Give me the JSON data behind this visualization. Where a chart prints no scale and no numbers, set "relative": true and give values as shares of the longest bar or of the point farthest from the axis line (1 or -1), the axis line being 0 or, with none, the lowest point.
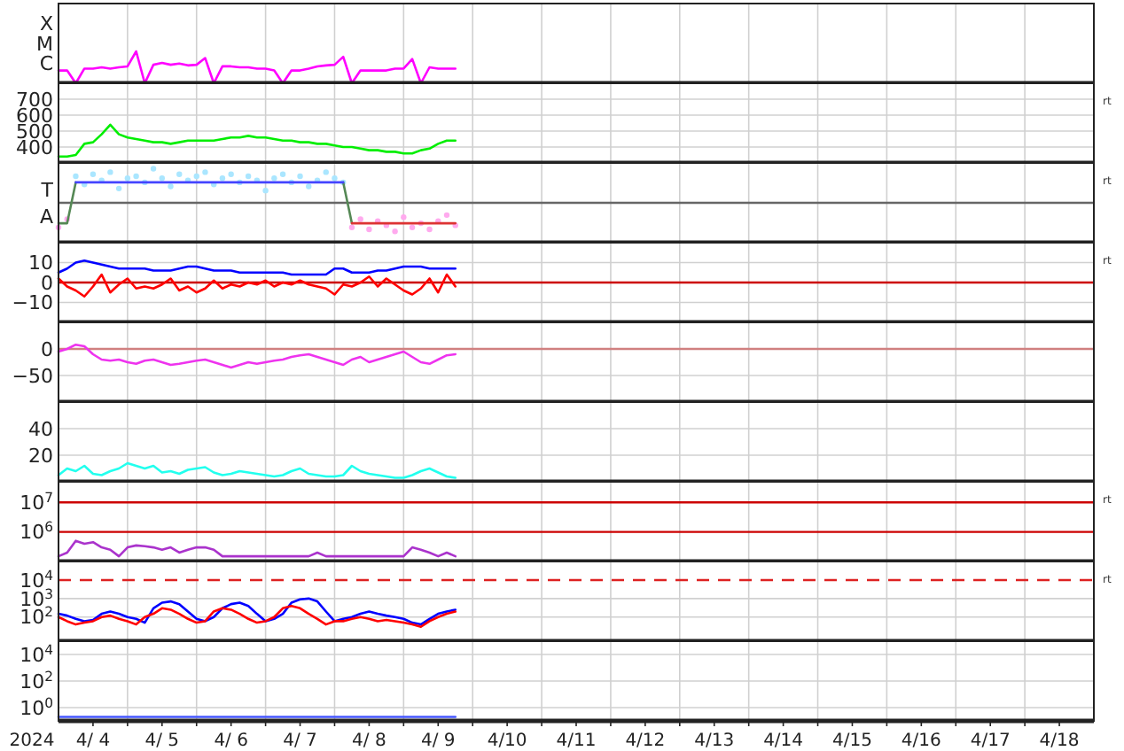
{
  "chart_data": [
    {
      "type": "line",
      "relative": true,
      "ylabel": "X M C",
      "grid": true,
      "tick_labels": "y",
      "xlim": [
        "2024-04-04T00:00",
        "2024-04-19T00:00"
      ],
      "x": [
        "2024-04-04T00:00",
        "2024-04-04T03:00",
        "2024-04-04T06:00",
        "2024-04-04T09:00",
        "2024-04-04T12:00",
        "2024-04-04T15:00",
        "2024-04-04T18:00",
        "2024-04-04T21:00",
        "2024-04-05T00:00",
        "2024-04-05T03:00",
        "2024-04-05T06:00",
        "2024-04-05T09:00",
        "2024-04-05T12:00",
        "2024-04-05T15:00",
        "2024-04-05T18:00",
        "2024-04-05T21:00",
        "2024-04-06T00:00",
        "2024-04-06T03:00",
        "2024-04-06T06:00",
        "2024-04-06T09:00",
        "2024-04-06T12:00",
        "2024-04-06T15:00",
        "2024-04-06T18:00",
        "2024-04-06T21:00",
        "2024-04-07T00:00",
        "2024-04-07T03:00",
        "2024-04-07T06:00",
        "2024-04-07T09:00",
        "2024-04-07T12:00",
        "2024-04-07T15:00",
        "2024-04-07T18:00",
        "2024-04-07T21:00",
        "2024-04-08T00:00",
        "2024-04-08T03:00",
        "2024-04-08T06:00",
        "2024-04-08T09:00",
        "2024-04-08T12:00",
        "2024-04-08T15:00",
        "2024-04-08T18:00",
        "2024-04-08T21:00",
        "2024-04-09T00:00",
        "2024-04-09T03:00",
        "2024-04-09T06:00",
        "2024-04-09T09:00",
        "2024-04-09T12:00",
        "2024-04-09T15:00",
        "2024-04-09T18:00"
      ],
      "series": [
        {
          "color": "#ff00ff",
          "values": [
            0.4,
            0.4,
            0,
            0.46,
            0.46,
            0.5,
            0.46,
            0.5,
            0.53,
            1,
            0,
            0.58,
            0.64,
            0.58,
            0.62,
            0.56,
            0.58,
            0.79,
            0,
            0.53,
            0.53,
            0.5,
            0.5,
            0.46,
            0.46,
            0.4,
            0,
            0.4,
            0.4,
            0.46,
            0.53,
            0.56,
            0.58,
            0.83,
            0,
            0.4,
            0.4,
            0.4,
            0.4,
            0.46,
            0.46,
            0.76,
            0,
            0.5,
            0.46,
            0.46,
            0.46
          ]
        }
      ]
    },
    {
      "type": "line",
      "ylim": [
        300,
        800
      ],
      "yticks": [
        400,
        500,
        600,
        700
      ],
      "grid": true,
      "tick_labels": "y",
      "annotations": [
        "rt"
      ],
      "xlim": [
        "2024-04-04T00:00",
        "2024-04-19T00:00"
      ],
      "x": [
        "2024-04-04T00:00",
        "2024-04-04T03:00",
        "2024-04-04T06:00",
        "2024-04-04T09:00",
        "2024-04-04T12:00",
        "2024-04-04T15:00",
        "2024-04-04T18:00",
        "2024-04-04T21:00",
        "2024-04-05T00:00",
        "2024-04-05T03:00",
        "2024-04-05T06:00",
        "2024-04-05T09:00",
        "2024-04-05T12:00",
        "2024-04-05T15:00",
        "2024-04-05T18:00",
        "2024-04-05T21:00",
        "2024-04-06T00:00",
        "2024-04-06T03:00",
        "2024-04-06T06:00",
        "2024-04-06T09:00",
        "2024-04-06T12:00",
        "2024-04-06T15:00",
        "2024-04-06T18:00",
        "2024-04-06T21:00",
        "2024-04-07T00:00",
        "2024-04-07T03:00",
        "2024-04-07T06:00",
        "2024-04-07T09:00",
        "2024-04-07T12:00",
        "2024-04-07T15:00",
        "2024-04-07T18:00",
        "2024-04-07T21:00",
        "2024-04-08T00:00",
        "2024-04-08T03:00",
        "2024-04-08T06:00",
        "2024-04-08T09:00",
        "2024-04-08T12:00",
        "2024-04-08T15:00",
        "2024-04-08T18:00",
        "2024-04-08T21:00",
        "2024-04-09T00:00",
        "2024-04-09T03:00",
        "2024-04-09T06:00",
        "2024-04-09T09:00",
        "2024-04-09T12:00",
        "2024-04-09T15:00",
        "2024-04-09T18:00"
      ],
      "series": [
        {
          "color": "#00ee00",
          "values": [
            340,
            340,
            350,
            420,
            430,
            480,
            540,
            480,
            460,
            450,
            440,
            430,
            430,
            420,
            430,
            440,
            440,
            440,
            440,
            450,
            460,
            460,
            470,
            460,
            460,
            450,
            440,
            440,
            430,
            430,
            420,
            420,
            410,
            400,
            400,
            390,
            380,
            380,
            370,
            370,
            360,
            360,
            380,
            390,
            420,
            440,
            440
          ]
        }
      ]
    },
    {
      "type": "line",
      "relative": true,
      "ylabel": "T A",
      "grid": true,
      "tick_labels": "y",
      "annotations": [
        "rt"
      ],
      "ref_lines": [
        {
          "axis": "y",
          "value": 0,
          "color": "#666666"
        }
      ],
      "xlim": [
        "2024-04-04T00:00",
        "2024-04-19T00:00"
      ],
      "x": [
        "2024-04-04T00:00",
        "2024-04-04T03:00",
        "2024-04-04T06:00",
        "2024-04-04T09:00",
        "2024-04-04T12:00",
        "2024-04-04T15:00",
        "2024-04-04T18:00",
        "2024-04-04T21:00",
        "2024-04-05T00:00",
        "2024-04-05T03:00",
        "2024-04-05T06:00",
        "2024-04-05T09:00",
        "2024-04-05T12:00",
        "2024-04-05T15:00",
        "2024-04-05T18:00",
        "2024-04-05T21:00",
        "2024-04-06T00:00",
        "2024-04-06T03:00",
        "2024-04-06T06:00",
        "2024-04-06T09:00",
        "2024-04-06T12:00",
        "2024-04-06T15:00",
        "2024-04-06T18:00",
        "2024-04-06T21:00",
        "2024-04-07T00:00",
        "2024-04-07T03:00",
        "2024-04-07T06:00",
        "2024-04-07T09:00",
        "2024-04-07T12:00",
        "2024-04-07T15:00",
        "2024-04-07T18:00",
        "2024-04-07T21:00",
        "2024-04-08T00:00",
        "2024-04-08T03:00",
        "2024-04-08T06:00",
        "2024-04-08T09:00",
        "2024-04-08T12:00",
        "2024-04-08T15:00",
        "2024-04-08T18:00",
        "2024-04-08T21:00",
        "2024-04-09T00:00",
        "2024-04-09T03:00",
        "2024-04-09T06:00",
        "2024-04-09T09:00",
        "2024-04-09T12:00",
        "2024-04-09T15:00",
        "2024-04-09T18:00"
      ],
      "series": [
        {
          "type": "scatter",
          "color": "#aae6ff",
          "values": [
            null,
            null,
            0.78,
            0.54,
            0.84,
            0.66,
            0.9,
            0.42,
            0.72,
            0.78,
            0.6,
            1,
            0.72,
            0.48,
            0.84,
            0.66,
            0.78,
            0.9,
            0.54,
            0.72,
            0.84,
            0.6,
            0.78,
            0.66,
            0.36,
            0.72,
            0.84,
            0.6,
            0.78,
            0.48,
            0.66,
            0.9,
            0.72,
            0.6,
            null,
            null,
            null,
            null,
            null,
            null,
            null,
            null,
            null,
            null,
            null,
            null,
            null
          ]
        },
        {
          "type": "scatter",
          "color": "#ffaaee",
          "values": [
            -0.72,
            -0.48,
            null,
            null,
            null,
            null,
            null,
            null,
            null,
            null,
            null,
            null,
            null,
            null,
            null,
            null,
            null,
            null,
            null,
            null,
            null,
            null,
            null,
            null,
            null,
            null,
            null,
            null,
            null,
            null,
            null,
            null,
            null,
            null,
            -0.72,
            -0.48,
            -0.78,
            -0.54,
            -0.66,
            -0.84,
            -0.42,
            -0.72,
            -0.6,
            -0.78,
            -0.54,
            -0.36,
            -0.66
          ]
        },
        {
          "color": "#558855",
          "values": [
            -0.6,
            -0.6,
            0.6,
            null,
            null,
            null,
            null,
            null,
            null,
            null,
            null,
            null,
            null,
            null,
            null,
            null,
            null,
            null,
            null,
            null,
            null,
            null,
            null,
            null,
            null,
            null,
            null,
            null,
            null,
            null,
            null,
            null,
            null,
            0.6,
            -0.6,
            null,
            null,
            null,
            null,
            null,
            null,
            null,
            null,
            null,
            null,
            null,
            null
          ]
        },
        {
          "color": "#4444ff",
          "values": [
            null,
            null,
            0.6,
            0.6,
            0.6,
            0.6,
            0.6,
            0.6,
            0.6,
            0.6,
            0.6,
            0.6,
            0.6,
            0.6,
            0.6,
            0.6,
            0.6,
            0.6,
            0.6,
            0.6,
            0.6,
            0.6,
            0.6,
            0.6,
            0.6,
            0.6,
            0.6,
            0.6,
            0.6,
            0.6,
            0.6,
            0.6,
            0.6,
            0.6,
            null,
            null,
            null,
            null,
            null,
            null,
            null,
            null,
            null,
            null,
            null,
            null,
            null
          ]
        },
        {
          "color": "#dd3333",
          "values": [
            null,
            null,
            null,
            null,
            null,
            null,
            null,
            null,
            null,
            null,
            null,
            null,
            null,
            null,
            null,
            null,
            null,
            null,
            null,
            null,
            null,
            null,
            null,
            null,
            null,
            null,
            null,
            null,
            null,
            null,
            null,
            null,
            null,
            null,
            -0.6,
            -0.6,
            -0.6,
            -0.6,
            -0.6,
            -0.6,
            -0.6,
            -0.6,
            -0.6,
            -0.6,
            -0.6,
            -0.6,
            -0.6
          ]
        }
      ]
    },
    {
      "type": "line",
      "ylim": [
        -20,
        20
      ],
      "yticks": [
        {
          "value": 10,
          "label": "10"
        },
        {
          "value": 0,
          "label": "0"
        },
        {
          "value": -10,
          "label": "−10"
        }
      ],
      "grid": true,
      "tick_labels": "y",
      "annotations": [
        "rt"
      ],
      "ref_lines": [
        {
          "axis": "y",
          "value": 0,
          "color": "#cc0000"
        }
      ],
      "xlim": [
        "2024-04-04T00:00",
        "2024-04-19T00:00"
      ],
      "x": [
        "2024-04-04T00:00",
        "2024-04-04T03:00",
        "2024-04-04T06:00",
        "2024-04-04T09:00",
        "2024-04-04T12:00",
        "2024-04-04T15:00",
        "2024-04-04T18:00",
        "2024-04-04T21:00",
        "2024-04-05T00:00",
        "2024-04-05T03:00",
        "2024-04-05T06:00",
        "2024-04-05T09:00",
        "2024-04-05T12:00",
        "2024-04-05T15:00",
        "2024-04-05T18:00",
        "2024-04-05T21:00",
        "2024-04-06T00:00",
        "2024-04-06T03:00",
        "2024-04-06T06:00",
        "2024-04-06T09:00",
        "2024-04-06T12:00",
        "2024-04-06T15:00",
        "2024-04-06T18:00",
        "2024-04-06T21:00",
        "2024-04-07T00:00",
        "2024-04-07T03:00",
        "2024-04-07T06:00",
        "2024-04-07T09:00",
        "2024-04-07T12:00",
        "2024-04-07T15:00",
        "2024-04-07T18:00",
        "2024-04-07T21:00",
        "2024-04-08T00:00",
        "2024-04-08T03:00",
        "2024-04-08T06:00",
        "2024-04-08T09:00",
        "2024-04-08T12:00",
        "2024-04-08T15:00",
        "2024-04-08T18:00",
        "2024-04-08T21:00",
        "2024-04-09T00:00",
        "2024-04-09T03:00",
        "2024-04-09T06:00",
        "2024-04-09T09:00",
        "2024-04-09T12:00",
        "2024-04-09T15:00",
        "2024-04-09T18:00"
      ],
      "series": [
        {
          "color": "#0000ff",
          "values": [
            5,
            7,
            10,
            11,
            10,
            9,
            8,
            7,
            7,
            7,
            7,
            6,
            6,
            6,
            7,
            8,
            8,
            7,
            6,
            6,
            6,
            5,
            5,
            5,
            5,
            5,
            5,
            4,
            4,
            4,
            4,
            4,
            7,
            7,
            5,
            5,
            5,
            6,
            6,
            7,
            8,
            8,
            8,
            7,
            7,
            7,
            7
          ]
        },
        {
          "color": "#ff0000",
          "values": [
            2,
            -2,
            -4,
            -7,
            -2,
            4,
            -5,
            -1,
            2,
            -3,
            -2,
            -3,
            -1,
            2,
            -4,
            -2,
            -5,
            -3,
            1,
            -3,
            -1,
            -2,
            0,
            -1,
            1,
            -2,
            0,
            -1,
            1,
            -1,
            -2,
            -3,
            -6,
            -1,
            -2,
            0,
            3,
            -2,
            2,
            -1,
            -4,
            -6,
            -3,
            2,
            -5,
            4,
            -2
          ]
        }
      ]
    },
    {
      "type": "line",
      "ylim": [
        -100,
        50
      ],
      "yticks": [
        {
          "value": 0,
          "label": "0"
        },
        {
          "value": -50,
          "label": "−50"
        }
      ],
      "grid": true,
      "tick_labels": "y",
      "ref_lines": [
        {
          "axis": "y",
          "value": 0,
          "color": "#d08080"
        }
      ],
      "xlim": [
        "2024-04-04T00:00",
        "2024-04-19T00:00"
      ],
      "x": [
        "2024-04-04T00:00",
        "2024-04-04T03:00",
        "2024-04-04T06:00",
        "2024-04-04T09:00",
        "2024-04-04T12:00",
        "2024-04-04T15:00",
        "2024-04-04T18:00",
        "2024-04-04T21:00",
        "2024-04-05T00:00",
        "2024-04-05T03:00",
        "2024-04-05T06:00",
        "2024-04-05T09:00",
        "2024-04-05T12:00",
        "2024-04-05T15:00",
        "2024-04-05T18:00",
        "2024-04-05T21:00",
        "2024-04-06T00:00",
        "2024-04-06T03:00",
        "2024-04-06T06:00",
        "2024-04-06T09:00",
        "2024-04-06T12:00",
        "2024-04-06T15:00",
        "2024-04-06T18:00",
        "2024-04-06T21:00",
        "2024-04-07T00:00",
        "2024-04-07T03:00",
        "2024-04-07T06:00",
        "2024-04-07T09:00",
        "2024-04-07T12:00",
        "2024-04-07T15:00",
        "2024-04-07T18:00",
        "2024-04-07T21:00",
        "2024-04-08T00:00",
        "2024-04-08T03:00",
        "2024-04-08T06:00",
        "2024-04-08T09:00",
        "2024-04-08T12:00",
        "2024-04-08T15:00",
        "2024-04-08T18:00",
        "2024-04-08T21:00",
        "2024-04-09T00:00",
        "2024-04-09T03:00",
        "2024-04-09T06:00",
        "2024-04-09T09:00",
        "2024-04-09T12:00",
        "2024-04-09T15:00",
        "2024-04-09T18:00"
      ],
      "series": [
        {
          "color": "#ee33ee",
          "values": [
            -5,
            0,
            8,
            5,
            -10,
            -20,
            -22,
            -20,
            -25,
            -28,
            -22,
            -20,
            -25,
            -30,
            -28,
            -25,
            -22,
            -20,
            -25,
            -30,
            -35,
            -30,
            -25,
            -28,
            -25,
            -22,
            -20,
            -15,
            -12,
            -10,
            -15,
            -20,
            -25,
            -30,
            -20,
            -15,
            -25,
            -20,
            -15,
            -10,
            -5,
            -15,
            -25,
            -28,
            -20,
            -12,
            -10
          ]
        }
      ]
    },
    {
      "type": "line",
      "ylim": [
        0,
        60
      ],
      "yticks": [
        20,
        40
      ],
      "grid": true,
      "tick_labels": "y",
      "xlim": [
        "2024-04-04T00:00",
        "2024-04-19T00:00"
      ],
      "x": [
        "2024-04-04T00:00",
        "2024-04-04T03:00",
        "2024-04-04T06:00",
        "2024-04-04T09:00",
        "2024-04-04T12:00",
        "2024-04-04T15:00",
        "2024-04-04T18:00",
        "2024-04-04T21:00",
        "2024-04-05T00:00",
        "2024-04-05T03:00",
        "2024-04-05T06:00",
        "2024-04-05T09:00",
        "2024-04-05T12:00",
        "2024-04-05T15:00",
        "2024-04-05T18:00",
        "2024-04-05T21:00",
        "2024-04-06T00:00",
        "2024-04-06T03:00",
        "2024-04-06T06:00",
        "2024-04-06T09:00",
        "2024-04-06T12:00",
        "2024-04-06T15:00",
        "2024-04-06T18:00",
        "2024-04-06T21:00",
        "2024-04-07T00:00",
        "2024-04-07T03:00",
        "2024-04-07T06:00",
        "2024-04-07T09:00",
        "2024-04-07T12:00",
        "2024-04-07T15:00",
        "2024-04-07T18:00",
        "2024-04-07T21:00",
        "2024-04-08T00:00",
        "2024-04-08T03:00",
        "2024-04-08T06:00",
        "2024-04-08T09:00",
        "2024-04-08T12:00",
        "2024-04-08T15:00",
        "2024-04-08T18:00",
        "2024-04-08T21:00",
        "2024-04-09T00:00",
        "2024-04-09T03:00",
        "2024-04-09T06:00",
        "2024-04-09T09:00",
        "2024-04-09T12:00",
        "2024-04-09T15:00",
        "2024-04-09T18:00"
      ],
      "series": [
        {
          "color": "#22ffee",
          "values": [
            5,
            10,
            8,
            12,
            6,
            5,
            8,
            10,
            14,
            12,
            10,
            12,
            7,
            8,
            6,
            9,
            10,
            11,
            7,
            5,
            6,
            8,
            7,
            6,
            5,
            4,
            5,
            8,
            10,
            6,
            5,
            4,
            4,
            5,
            12,
            8,
            6,
            5,
            4,
            3,
            3,
            5,
            8,
            10,
            7,
            4,
            3
          ]
        }
      ]
    },
    {
      "type": "line",
      "log": true,
      "ylim": [
        100000.0,
        50000000.0
      ],
      "yticks": [
        {
          "value": 10000000.0,
          "label": "10$^{7}$"
        },
        {
          "value": 1000000.0,
          "label": "10$^{6}$"
        }
      ],
      "grid": true,
      "tick_labels": "y",
      "annotations": [
        "rt"
      ],
      "ref_lines": [
        {
          "axis": "y",
          "value": 10000000.0,
          "color": "#cc0000"
        },
        {
          "axis": "y",
          "value": 1000000.0,
          "color": "#cc0000"
        }
      ],
      "xlim": [
        "2024-04-04T00:00",
        "2024-04-19T00:00"
      ],
      "x": [
        "2024-04-04T00:00",
        "2024-04-04T03:00",
        "2024-04-04T06:00",
        "2024-04-04T09:00",
        "2024-04-04T12:00",
        "2024-04-04T15:00",
        "2024-04-04T18:00",
        "2024-04-04T21:00",
        "2024-04-05T00:00",
        "2024-04-05T03:00",
        "2024-04-05T06:00",
        "2024-04-05T09:00",
        "2024-04-05T12:00",
        "2024-04-05T15:00",
        "2024-04-05T18:00",
        "2024-04-05T21:00",
        "2024-04-06T00:00",
        "2024-04-06T03:00",
        "2024-04-06T06:00",
        "2024-04-06T09:00",
        "2024-04-06T12:00",
        "2024-04-06T15:00",
        "2024-04-06T18:00",
        "2024-04-06T21:00",
        "2024-04-07T00:00",
        "2024-04-07T03:00",
        "2024-04-07T06:00",
        "2024-04-07T09:00",
        "2024-04-07T12:00",
        "2024-04-07T15:00",
        "2024-04-07T18:00",
        "2024-04-07T21:00",
        "2024-04-08T00:00",
        "2024-04-08T03:00",
        "2024-04-08T06:00",
        "2024-04-08T09:00",
        "2024-04-08T12:00",
        "2024-04-08T15:00",
        "2024-04-08T18:00",
        "2024-04-08T21:00",
        "2024-04-09T00:00",
        "2024-04-09T03:00",
        "2024-04-09T06:00",
        "2024-04-09T09:00",
        "2024-04-09T12:00",
        "2024-04-09T15:00",
        "2024-04-09T18:00"
      ],
      "series": [
        {
          "color": "#aa33cc",
          "values": [
            150000.0,
            200000.0,
            500000.0,
            400000.0,
            450000.0,
            300000.0,
            250000.0,
            150000.0,
            300000.0,
            350000.0,
            330000.0,
            300000.0,
            250000.0,
            300000.0,
            200000.0,
            250000.0,
            300000.0,
            300000.0,
            250000.0,
            150000.0,
            150000.0,
            150000.0,
            150000.0,
            150000.0,
            150000.0,
            150000.0,
            150000.0,
            150000.0,
            150000.0,
            150000.0,
            200000.0,
            150000.0,
            150000.0,
            150000.0,
            150000.0,
            150000.0,
            150000.0,
            150000.0,
            150000.0,
            150000.0,
            150000.0,
            300000.0,
            250000.0,
            200000.0,
            150000.0,
            200000.0,
            150000.0
          ]
        }
      ]
    },
    {
      "type": "line",
      "log": true,
      "ylim": [
        5,
        100000.0
      ],
      "yticks": [
        {
          "value": 10000.0,
          "label": "10$^{4}$"
        },
        {
          "value": 1000.0,
          "label": "10$^{3}$"
        },
        {
          "value": 100.0,
          "label": "10$^{2}$"
        }
      ],
      "grid": true,
      "tick_labels": "y",
      "annotations": [
        "rt"
      ],
      "ref_lines": [
        {
          "axis": "y",
          "value": 10000.0,
          "color": "#dd2222",
          "line_style": "dashed"
        }
      ],
      "xlim": [
        "2024-04-04T00:00",
        "2024-04-19T00:00"
      ],
      "x": [
        "2024-04-04T00:00",
        "2024-04-04T03:00",
        "2024-04-04T06:00",
        "2024-04-04T09:00",
        "2024-04-04T12:00",
        "2024-04-04T15:00",
        "2024-04-04T18:00",
        "2024-04-04T21:00",
        "2024-04-05T00:00",
        "2024-04-05T03:00",
        "2024-04-05T06:00",
        "2024-04-05T09:00",
        "2024-04-05T12:00",
        "2024-04-05T15:00",
        "2024-04-05T18:00",
        "2024-04-05T21:00",
        "2024-04-06T00:00",
        "2024-04-06T03:00",
        "2024-04-06T06:00",
        "2024-04-06T09:00",
        "2024-04-06T12:00",
        "2024-04-06T15:00",
        "2024-04-06T18:00",
        "2024-04-06T21:00",
        "2024-04-07T00:00",
        "2024-04-07T03:00",
        "2024-04-07T06:00",
        "2024-04-07T09:00",
        "2024-04-07T12:00",
        "2024-04-07T15:00",
        "2024-04-07T18:00",
        "2024-04-07T21:00",
        "2024-04-08T00:00",
        "2024-04-08T03:00",
        "2024-04-08T06:00",
        "2024-04-08T09:00",
        "2024-04-08T12:00",
        "2024-04-08T15:00",
        "2024-04-08T18:00",
        "2024-04-08T21:00",
        "2024-04-09T00:00",
        "2024-04-09T03:00",
        "2024-04-09T06:00",
        "2024-04-09T09:00",
        "2024-04-09T12:00",
        "2024-04-09T15:00",
        "2024-04-09T18:00"
      ],
      "series": [
        {
          "color": "#0000ff",
          "values": [
            150,
            120,
            80,
            60,
            70,
            150,
            200,
            150,
            100,
            80,
            50,
            300,
            600,
            700,
            500,
            200,
            80,
            60,
            100,
            300,
            500,
            600,
            400,
            150,
            60,
            80,
            150,
            600,
            900,
            1000,
            700,
            200,
            60,
            80,
            100,
            150,
            200,
            150,
            120,
            100,
            80,
            50,
            40,
            80,
            150,
            200,
            250
          ]
        },
        {
          "color": "#ff0000",
          "values": [
            100,
            60,
            40,
            50,
            60,
            100,
            120,
            80,
            60,
            40,
            100,
            150,
            300,
            250,
            150,
            80,
            50,
            60,
            200,
            300,
            250,
            150,
            80,
            50,
            60,
            100,
            300,
            400,
            300,
            150,
            80,
            40,
            60,
            60,
            80,
            100,
            80,
            60,
            70,
            60,
            50,
            40,
            30,
            60,
            100,
            150,
            200
          ]
        }
      ]
    },
    {
      "type": "line",
      "log": true,
      "ylim": [
        0.1,
        100000.0
      ],
      "yticks": [
        {
          "value": 10000.0,
          "label": "10$^{4}$"
        },
        {
          "value": 100.0,
          "label": "10$^{2}$"
        },
        {
          "value": 1,
          "label": "10$^{0}$"
        }
      ],
      "grid": true,
      "xlabel": "2024",
      "xlim": [
        "2024-04-04T00:00",
        "2024-04-19T00:00"
      ],
      "xticks": [
        {
          "value": "2024-04-04T12:00",
          "label": "4/ 4"
        },
        {
          "value": "2024-04-05T00:00",
          "label": null
        },
        {
          "value": "2024-04-05T12:00",
          "label": "4/ 5"
        },
        {
          "value": "2024-04-06T00:00",
          "label": null
        },
        {
          "value": "2024-04-06T12:00",
          "label": "4/ 6"
        },
        {
          "value": "2024-04-07T00:00",
          "label": null
        },
        {
          "value": "2024-04-07T12:00",
          "label": "4/ 7"
        },
        {
          "value": "2024-04-08T00:00",
          "label": null
        },
        {
          "value": "2024-04-08T12:00",
          "label": "4/ 8"
        },
        {
          "value": "2024-04-09T00:00",
          "label": null
        },
        {
          "value": "2024-04-09T12:00",
          "label": "4/ 9"
        },
        {
          "value": "2024-04-10T00:00",
          "label": null
        },
        {
          "value": "2024-04-10T12:00",
          "label": "4/10"
        },
        {
          "value": "2024-04-11T00:00",
          "label": null
        },
        {
          "value": "2024-04-11T12:00",
          "label": "4/11"
        },
        {
          "value": "2024-04-12T00:00",
          "label": null
        },
        {
          "value": "2024-04-12T12:00",
          "label": "4/12"
        },
        {
          "value": "2024-04-13T00:00",
          "label": null
        },
        {
          "value": "2024-04-13T12:00",
          "label": "4/13"
        },
        {
          "value": "2024-04-14T00:00",
          "label": null
        },
        {
          "value": "2024-04-14T12:00",
          "label": "4/14"
        },
        {
          "value": "2024-04-15T00:00",
          "label": null
        },
        {
          "value": "2024-04-15T12:00",
          "label": "4/15"
        },
        {
          "value": "2024-04-16T00:00",
          "label": null
        },
        {
          "value": "2024-04-16T12:00",
          "label": "4/16"
        },
        {
          "value": "2024-04-17T00:00",
          "label": null
        },
        {
          "value": "2024-04-17T12:00",
          "label": "4/17"
        },
        {
          "value": "2024-04-18T00:00",
          "label": null
        },
        {
          "value": "2024-04-18T12:00",
          "label": "4/18"
        }
      ],
      "x": [
        "2024-04-04T00:00",
        "2024-04-04T03:00",
        "2024-04-04T06:00",
        "2024-04-04T09:00",
        "2024-04-04T12:00",
        "2024-04-04T15:00",
        "2024-04-04T18:00",
        "2024-04-04T21:00",
        "2024-04-05T00:00",
        "2024-04-05T03:00",
        "2024-04-05T06:00",
        "2024-04-05T09:00",
        "2024-04-05T12:00",
        "2024-04-05T15:00",
        "2024-04-05T18:00",
        "2024-04-05T21:00",
        "2024-04-06T00:00",
        "2024-04-06T03:00",
        "2024-04-06T06:00",
        "2024-04-06T09:00",
        "2024-04-06T12:00",
        "2024-04-06T15:00",
        "2024-04-06T18:00",
        "2024-04-06T21:00",
        "2024-04-07T00:00",
        "2024-04-07T03:00",
        "2024-04-07T06:00",
        "2024-04-07T09:00",
        "2024-04-07T12:00",
        "2024-04-07T15:00",
        "2024-04-07T18:00",
        "2024-04-07T21:00",
        "2024-04-08T00:00",
        "2024-04-08T03:00",
        "2024-04-08T06:00",
        "2024-04-08T09:00",
        "2024-04-08T12:00",
        "2024-04-08T15:00",
        "2024-04-08T18:00",
        "2024-04-08T21:00",
        "2024-04-09T00:00",
        "2024-04-09T03:00",
        "2024-04-09T06:00",
        "2024-04-09T09:00",
        "2024-04-09T12:00",
        "2024-04-09T15:00",
        "2024-04-09T18:00"
      ],
      "series": [
        {
          "color": "#4455ff",
          "values": [
            0.2,
            0.2,
            0.2,
            0.2,
            0.2,
            0.2,
            0.2,
            0.2,
            0.2,
            0.2,
            0.2,
            0.2,
            0.2,
            0.2,
            0.2,
            0.2,
            0.2,
            0.2,
            0.2,
            0.2,
            0.2,
            0.2,
            0.2,
            0.2,
            0.2,
            0.2,
            0.2,
            0.2,
            0.2,
            0.2,
            0.2,
            0.2,
            0.2,
            0.2,
            0.2,
            0.2,
            0.2,
            0.2,
            0.2,
            0.2,
            0.2,
            0.2,
            0.2,
            0.2,
            0.2,
            0.2,
            0.2
          ]
        }
      ]
    }
  ]
}
